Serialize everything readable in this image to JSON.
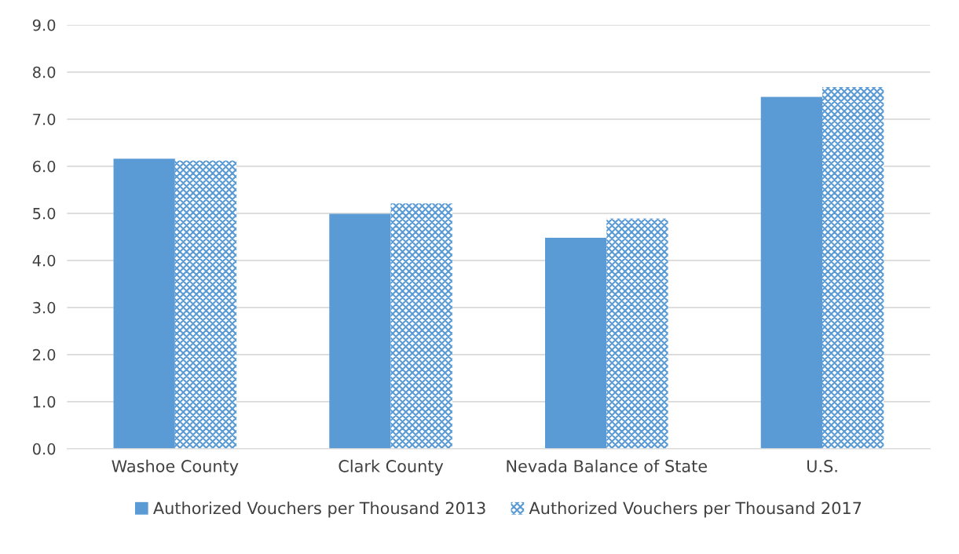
{
  "chart_data": {
    "type": "bar",
    "categories": [
      "Washoe County",
      "Clark County",
      "Nevada Balance of State",
      "U.S."
    ],
    "series": [
      {
        "name": "Authorized Vouchers per Thousand 2013",
        "color": "#5b9bd5",
        "values": [
          6.16,
          4.99,
          4.48,
          7.47
        ]
      },
      {
        "name": "Authorized Vouchers per Thousand 2017",
        "color": "#5b9bd5",
        "values": [
          6.12,
          5.21,
          4.89,
          7.68
        ]
      }
    ],
    "ylim": [
      0,
      9
    ],
    "yticks": [
      {
        "value": 0,
        "label": "0.0"
      },
      {
        "value": 1,
        "label": "1.0"
      },
      {
        "value": 2,
        "label": "2.0"
      },
      {
        "value": 3,
        "label": "3.0"
      },
      {
        "value": 4,
        "label": "4.0"
      },
      {
        "value": 5,
        "label": "5.0"
      },
      {
        "value": 6,
        "label": "6.0"
      },
      {
        "value": 7,
        "label": "7.0"
      },
      {
        "value": 8,
        "label": "8.0"
      },
      {
        "value": 9,
        "label": "9.0"
      }
    ],
    "grid": "y",
    "legend": "bottom"
  }
}
